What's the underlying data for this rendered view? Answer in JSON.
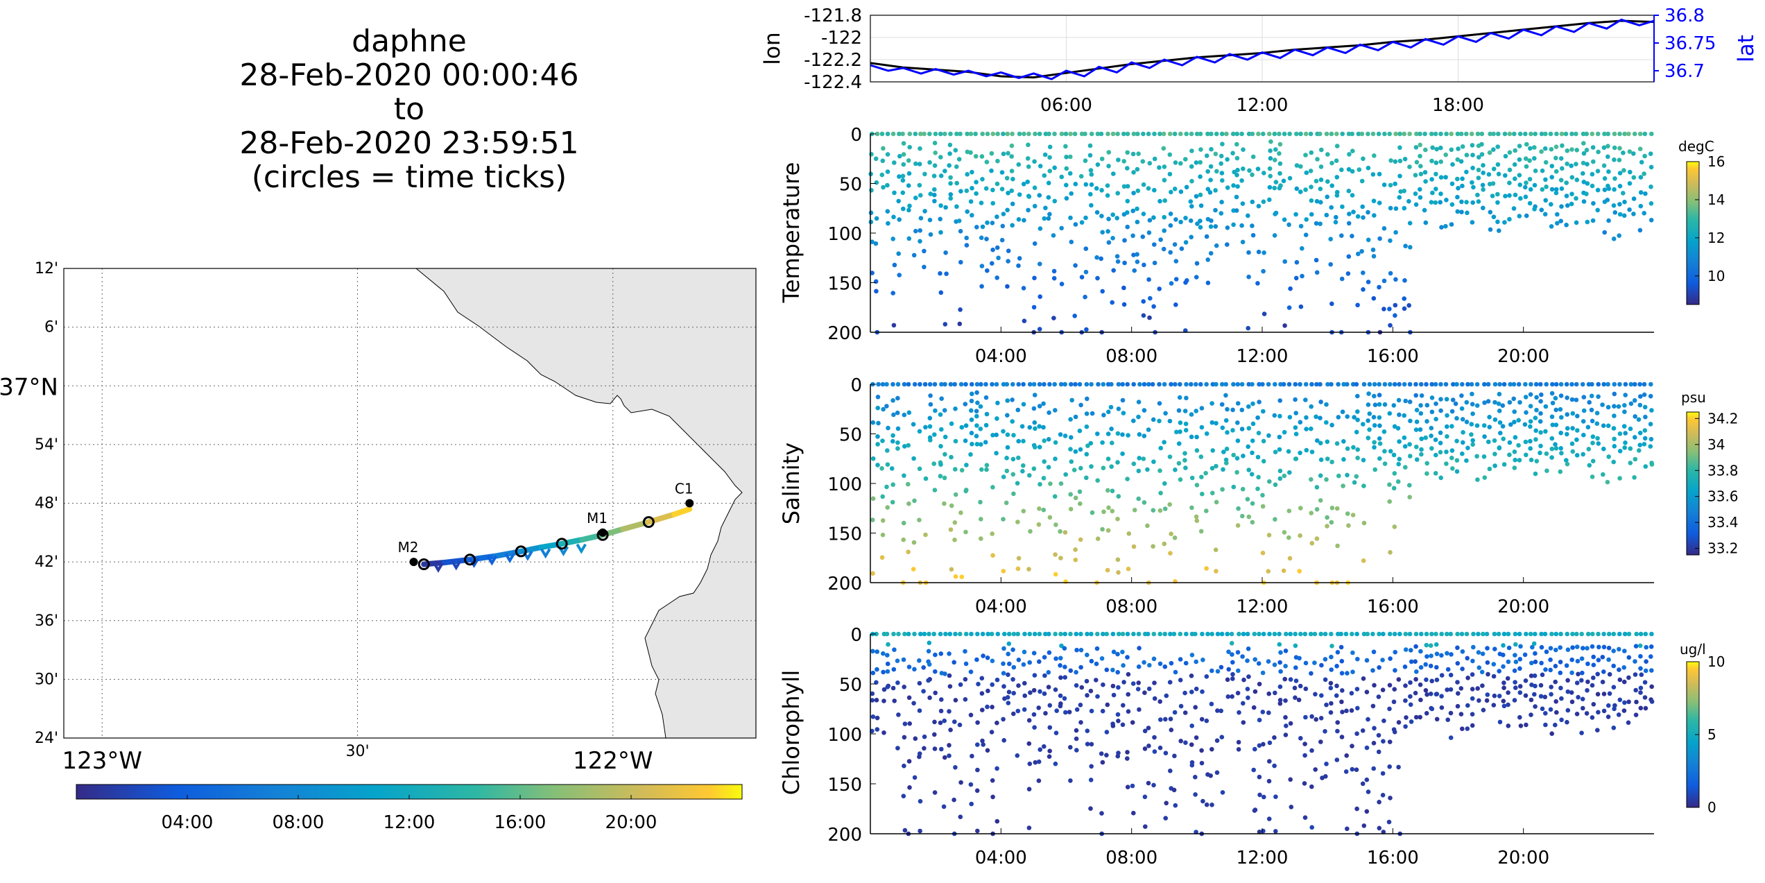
{
  "title": {
    "line1": "daphne",
    "line2": "28-Feb-2020 00:00:46",
    "line3": "to",
    "line4": "28-Feb-2020 23:59:51",
    "line5": "(circles = time ticks)"
  },
  "colors": {
    "lat_axis": "#0000ff",
    "lon_line": "#000000",
    "lat_line": "#0000ff",
    "land": "#e6e6e6"
  },
  "chart_data": [
    {
      "type": "line",
      "id": "lonlat",
      "ylabel": "lon",
      "ylabel_right": "lat",
      "x_ticks": [
        "06:00",
        "12:00",
        "18:00"
      ],
      "ylim": [
        -122.4,
        -121.8
      ],
      "y_ticks": [
        "-121.8",
        "-122",
        "-122.2",
        "-122.4"
      ],
      "ylim_right": [
        36.68,
        36.8
      ],
      "y_ticks_right": [
        "36.8",
        "36.75",
        "36.7"
      ],
      "grid": true,
      "series": [
        {
          "name": "lon",
          "axis": "left",
          "x_hours": [
            0,
            1,
            2,
            3,
            4,
            5,
            6,
            7,
            8,
            9,
            10,
            11,
            12,
            13,
            14,
            15,
            16,
            17,
            18,
            19,
            20,
            21,
            22,
            23,
            24
          ],
          "values": [
            -122.23,
            -122.27,
            -122.29,
            -122.31,
            -122.35,
            -122.36,
            -122.32,
            -122.28,
            -122.24,
            -122.21,
            -122.18,
            -122.16,
            -122.14,
            -122.11,
            -122.09,
            -122.07,
            -122.04,
            -122.02,
            -121.99,
            -121.96,
            -121.93,
            -121.9,
            -121.87,
            -121.85,
            -121.86
          ]
        },
        {
          "name": "lat",
          "axis": "right",
          "x_hours": [
            0,
            1,
            2,
            3,
            4,
            5,
            6,
            7,
            8,
            9,
            10,
            11,
            12,
            13,
            14,
            15,
            16,
            17,
            18,
            19,
            20,
            21,
            22,
            23,
            24
          ],
          "values": [
            36.71,
            36.705,
            36.703,
            36.7,
            36.697,
            36.695,
            36.7,
            36.707,
            36.715,
            36.72,
            36.725,
            36.73,
            36.733,
            36.738,
            36.742,
            36.747,
            36.752,
            36.757,
            36.762,
            36.768,
            36.774,
            36.78,
            36.786,
            36.792,
            36.79
          ]
        }
      ]
    },
    {
      "type": "scatter",
      "id": "temperature",
      "ylabel": "Temperature",
      "x_ticks": [
        "04:00",
        "08:00",
        "12:00",
        "16:00",
        "20:00"
      ],
      "ylim": [
        200,
        0
      ],
      "y_ticks": [
        "0",
        "50",
        "100",
        "150",
        "200"
      ],
      "colorbar": {
        "label": "degC",
        "ticks": [
          "16",
          "14",
          "12",
          "10"
        ],
        "range": [
          8.5,
          16
        ]
      },
      "grid": false
    },
    {
      "type": "scatter",
      "id": "salinity",
      "ylabel": "Salinity",
      "x_ticks": [
        "04:00",
        "08:00",
        "12:00",
        "16:00",
        "20:00"
      ],
      "ylim": [
        200,
        0
      ],
      "y_ticks": [
        "0",
        "50",
        "100",
        "150",
        "200"
      ],
      "colorbar": {
        "label": "psu",
        "ticks": [
          "34.2",
          "34",
          "33.8",
          "33.6",
          "33.4",
          "33.2"
        ],
        "range": [
          33.15,
          34.25
        ]
      },
      "grid": false
    },
    {
      "type": "scatter",
      "id": "chlorophyll",
      "ylabel": "Chlorophyll",
      "x_ticks": [
        "04:00",
        "08:00",
        "12:00",
        "16:00",
        "20:00"
      ],
      "ylim": [
        200,
        0
      ],
      "y_ticks": [
        "0",
        "50",
        "100",
        "150",
        "200"
      ],
      "colorbar": {
        "label": "ug/l",
        "ticks": [
          "10",
          "5",
          "0"
        ],
        "range": [
          0,
          10
        ]
      },
      "grid": false
    },
    {
      "type": "line",
      "id": "map",
      "lat_ticks": [
        "12'",
        "6'",
        "37°N",
        "54'",
        "48'",
        "42'",
        "36'",
        "30'",
        "24'"
      ],
      "lon_ticks": [
        "123°W",
        "30'",
        "122°W"
      ],
      "stations": [
        {
          "name": "C1",
          "lon": -121.85,
          "lat": 36.8
        },
        {
          "name": "M1",
          "lon": -122.02,
          "lat": 36.75
        },
        {
          "name": "M2",
          "lon": -122.39,
          "lat": 36.7
        }
      ],
      "track_lon": [
        -122.37,
        -122.33,
        -122.28,
        -122.23,
        -122.18,
        -122.14,
        -122.1,
        -122.06,
        -122.02,
        -121.98,
        -121.93,
        -121.88,
        -121.85
      ],
      "track_lat": [
        36.696,
        36.699,
        36.704,
        36.71,
        36.718,
        36.725,
        36.731,
        36.738,
        36.746,
        36.756,
        36.768,
        36.781,
        36.79
      ],
      "colorbar_ticks": [
        "04:00",
        "08:00",
        "12:00",
        "16:00",
        "20:00"
      ]
    }
  ]
}
